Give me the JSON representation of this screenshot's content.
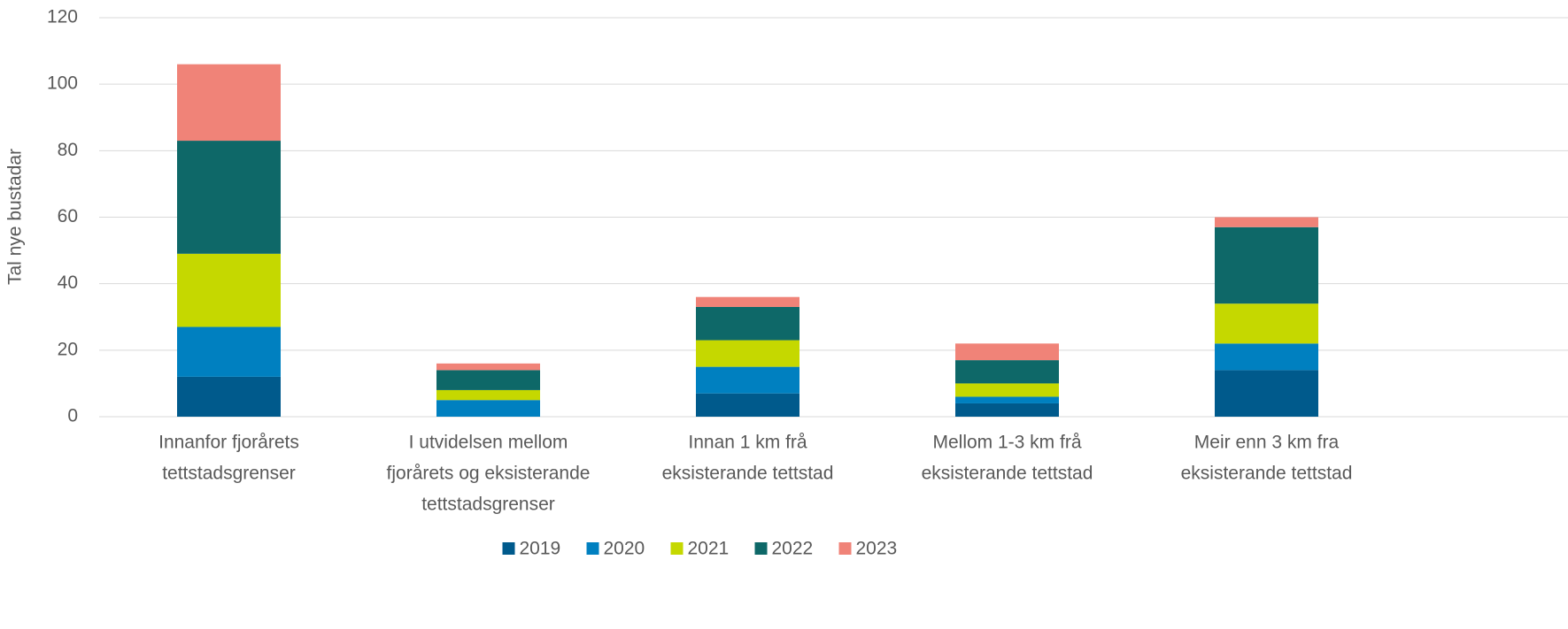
{
  "chart_data": {
    "type": "stacked_bar",
    "y_label": "Tal nye bustadar",
    "categories": [
      [
        "Innanfor fjorårets",
        "tettstadsgrenser"
      ],
      [
        "I utvidelsen mellom",
        "fjorårets og eksisterande",
        "tettstadsgrenser"
      ],
      [
        "Innan 1 km frå",
        "eksisterande tettstad"
      ],
      [
        "Mellom 1-3 km frå",
        "eksisterande tettstad"
      ],
      [
        "Meir enn 3 km fra",
        "eksisterande tettstad"
      ]
    ],
    "series": [
      {
        "name": "2019",
        "color": "#005a8c",
        "values": [
          12,
          0,
          7,
          4,
          14
        ]
      },
      {
        "name": "2020",
        "color": "#0080c0",
        "values": [
          15,
          5,
          8,
          2,
          8
        ]
      },
      {
        "name": "2021",
        "color": "#c5d800",
        "values": [
          22,
          3,
          8,
          4,
          12
        ]
      },
      {
        "name": "2022",
        "color": "#0e6868",
        "values": [
          34,
          6,
          10,
          7,
          23
        ]
      },
      {
        "name": "2023",
        "color": "#f08378",
        "values": [
          23,
          2,
          3,
          5,
          3
        ]
      }
    ],
    "ylim": [
      0,
      120
    ],
    "yticks": [
      0,
      20,
      40,
      60,
      80,
      100,
      120
    ],
    "grid": true,
    "legend": "bottom"
  }
}
